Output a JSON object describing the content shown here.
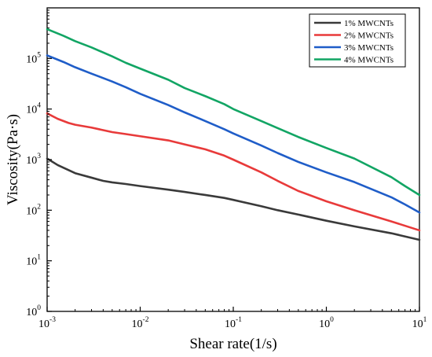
{
  "chart_data": {
    "type": "line",
    "title": "",
    "xlabel": "Shear rate(1/s)",
    "ylabel": "Viscosity(Pa·s)",
    "xscale": "log",
    "yscale": "log",
    "xlim": [
      0.001,
      10
    ],
    "ylim": [
      1,
      1000000
    ],
    "x_ticks": [
      {
        "base": "10",
        "exp": "-3",
        "value": 0.001
      },
      {
        "base": "10",
        "exp": "-2",
        "value": 0.01
      },
      {
        "base": "10",
        "exp": "-1",
        "value": 0.1
      },
      {
        "base": "10",
        "exp": "0",
        "value": 1
      },
      {
        "base": "10",
        "exp": "1",
        "value": 10
      }
    ],
    "y_ticks": [
      {
        "base": "10",
        "exp": "0",
        "value": 1
      },
      {
        "base": "10",
        "exp": "1",
        "value": 10
      },
      {
        "base": "10",
        "exp": "2",
        "value": 100
      },
      {
        "base": "10",
        "exp": "3",
        "value": 1000
      },
      {
        "base": "10",
        "exp": "4",
        "value": 10000
      },
      {
        "base": "10",
        "exp": "5",
        "value": 100000
      }
    ],
    "grid": false,
    "legend_position": "top-right",
    "series": [
      {
        "name": "1% MWCNTs",
        "color": "#3a3a3a",
        "points": [
          [
            0.001,
            1050
          ],
          [
            0.0013,
            780
          ],
          [
            0.0017,
            620
          ],
          [
            0.002,
            540
          ],
          [
            0.003,
            440
          ],
          [
            0.004,
            380
          ],
          [
            0.005,
            355
          ],
          [
            0.007,
            330
          ],
          [
            0.01,
            300
          ],
          [
            0.02,
            255
          ],
          [
            0.03,
            230
          ],
          [
            0.05,
            200
          ],
          [
            0.08,
            175
          ],
          [
            0.1,
            160
          ],
          [
            0.2,
            120
          ],
          [
            0.3,
            100
          ],
          [
            0.5,
            82
          ],
          [
            1,
            62
          ],
          [
            2,
            48
          ],
          [
            5,
            35
          ],
          [
            10,
            26
          ]
        ]
      },
      {
        "name": "2% MWCNTs",
        "color": "#e83a3a",
        "points": [
          [
            0.001,
            8200
          ],
          [
            0.0013,
            6400
          ],
          [
            0.0017,
            5300
          ],
          [
            0.002,
            4900
          ],
          [
            0.003,
            4300
          ],
          [
            0.005,
            3500
          ],
          [
            0.007,
            3200
          ],
          [
            0.01,
            2900
          ],
          [
            0.02,
            2400
          ],
          [
            0.03,
            2000
          ],
          [
            0.05,
            1600
          ],
          [
            0.08,
            1200
          ],
          [
            0.1,
            1000
          ],
          [
            0.2,
            560
          ],
          [
            0.3,
            380
          ],
          [
            0.5,
            240
          ],
          [
            1,
            150
          ],
          [
            2,
            100
          ],
          [
            5,
            60
          ],
          [
            10,
            40
          ]
        ]
      },
      {
        "name": "3% MWCNTs",
        "color": "#1f5dc8",
        "points": [
          [
            0.001,
            115000
          ],
          [
            0.0015,
            85000
          ],
          [
            0.002,
            67000
          ],
          [
            0.003,
            50000
          ],
          [
            0.005,
            35000
          ],
          [
            0.007,
            27000
          ],
          [
            0.01,
            20000
          ],
          [
            0.02,
            12000
          ],
          [
            0.03,
            8600
          ],
          [
            0.05,
            5800
          ],
          [
            0.08,
            4000
          ],
          [
            0.1,
            3300
          ],
          [
            0.2,
            1900
          ],
          [
            0.3,
            1350
          ],
          [
            0.5,
            900
          ],
          [
            1,
            560
          ],
          [
            2,
            360
          ],
          [
            5,
            180
          ],
          [
            7,
            130
          ],
          [
            10,
            90
          ]
        ]
      },
      {
        "name": "4% MWCNTs",
        "color": "#12a564",
        "points": [
          [
            0.001,
            380000
          ],
          [
            0.0015,
            280000
          ],
          [
            0.002,
            220000
          ],
          [
            0.003,
            165000
          ],
          [
            0.005,
            110000
          ],
          [
            0.007,
            82000
          ],
          [
            0.01,
            63000
          ],
          [
            0.02,
            38000
          ],
          [
            0.03,
            26000
          ],
          [
            0.05,
            18000
          ],
          [
            0.08,
            12500
          ],
          [
            0.1,
            10000
          ],
          [
            0.2,
            5800
          ],
          [
            0.3,
            4200
          ],
          [
            0.5,
            2800
          ],
          [
            1,
            1700
          ],
          [
            2,
            1050
          ],
          [
            5,
            450
          ],
          [
            7,
            300
          ],
          [
            10,
            200
          ]
        ]
      }
    ]
  }
}
